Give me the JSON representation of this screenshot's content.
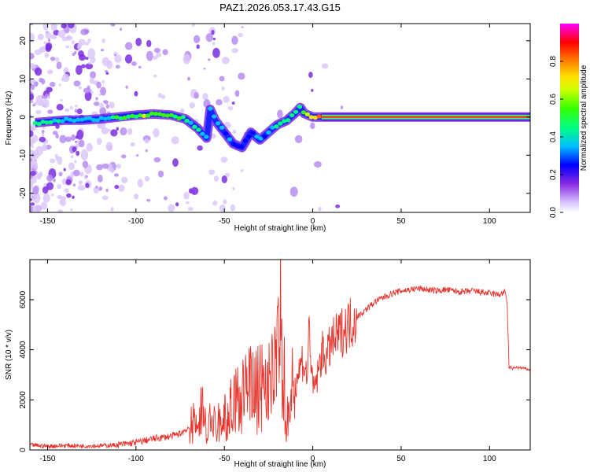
{
  "title": "PAZ1.2026.053.17.43.G15",
  "chart_data": [
    {
      "type": "heatmap",
      "xlabel": "Height of straight line (km)",
      "ylabel": "Frequency (Hz)",
      "xlim": [
        -160,
        123
      ],
      "ylim": [
        -25,
        24.5
      ],
      "xticks": [
        "-150",
        "-100",
        "-50",
        "0",
        "50",
        "100"
      ],
      "yticks": [
        "20",
        "10",
        "0",
        "-10",
        "-20"
      ],
      "ridge": {
        "x": [
          -157,
          -150,
          -140,
          -130,
          -120,
          -110,
          -100,
          -90,
          -80,
          -72,
          -65,
          -60,
          -58,
          -55,
          -50,
          -45,
          -40,
          -35,
          -30,
          -25,
          -20,
          -15,
          -10,
          -7,
          -5,
          0,
          5,
          10,
          50,
          100,
          123
        ],
        "y": [
          -1.5,
          -1.2,
          -0.8,
          -0.8,
          -0.5,
          0,
          0.5,
          0.8,
          0.5,
          -0.5,
          -3,
          -5.5,
          2,
          -1,
          -4,
          -7,
          -8,
          -4,
          -6,
          -4,
          -2,
          -1,
          1,
          2.5,
          1,
          0,
          0,
          0,
          0,
          0,
          0
        ],
        "amplitude": [
          0.45,
          0.5,
          0.4,
          0.4,
          0.35,
          0.55,
          0.6,
          0.62,
          0.6,
          0.55,
          0.45,
          0.4,
          0.35,
          0.45,
          0.35,
          0.35,
          0.3,
          0.35,
          0.35,
          0.4,
          0.45,
          0.5,
          0.5,
          0.55,
          0.6,
          0.75,
          0.9,
          0.95,
          0.95,
          0.95,
          0.95
        ]
      },
      "colorbar": {
        "label": "Normalized spectral amplitude",
        "range": [
          0,
          1
        ],
        "ticks": [
          "0.0",
          "0.2",
          "0.4",
          "0.6",
          "0.8"
        ]
      }
    },
    {
      "type": "line",
      "xlabel": "Height of straight line (km)",
      "ylabel": "SNR (10 * v/v)",
      "xlim": [
        -160,
        123
      ],
      "ylim": [
        0,
        7600
      ],
      "xticks": [
        "-150",
        "-100",
        "-50",
        "0",
        "50",
        "100"
      ],
      "yticks": [
        "0",
        "2000",
        "4000",
        "6000"
      ],
      "color": "#e8342c",
      "series": [
        {
          "x": [
            -160,
            -150,
            -140,
            -130,
            -120,
            -110,
            -100,
            -90,
            -80,
            -75,
            -70,
            -65,
            -62,
            -60,
            -57,
            -55,
            -50,
            -45,
            -40,
            -35,
            -30,
            -25,
            -22,
            -19,
            -18,
            -17,
            -16,
            -15,
            -13,
            -10,
            -8,
            -6,
            -3,
            -2,
            0,
            3,
            5,
            8,
            10,
            15,
            20,
            25,
            30,
            35,
            40,
            45,
            50,
            55,
            60,
            65,
            70,
            75,
            80,
            85,
            90,
            95,
            100,
            105,
            109,
            110,
            111,
            113,
            115,
            120,
            123
          ],
          "y": [
            200,
            150,
            180,
            160,
            170,
            200,
            300,
            450,
            550,
            650,
            900,
            1300,
            1800,
            900,
            1200,
            1000,
            1300,
            1900,
            2400,
            2700,
            3000,
            2800,
            3200,
            5000,
            6200,
            2000,
            3300,
            800,
            2600,
            2700,
            3100,
            3600,
            2900,
            5100,
            2300,
            3000,
            3900,
            3700,
            4200,
            4600,
            5000,
            5300,
            5600,
            5900,
            6100,
            6250,
            6350,
            6400,
            6450,
            6400,
            6350,
            6400,
            6350,
            6300,
            6350,
            6300,
            6250,
            6200,
            6300,
            5800,
            3300,
            3250,
            3300,
            3250,
            3200
          ]
        }
      ]
    }
  ]
}
